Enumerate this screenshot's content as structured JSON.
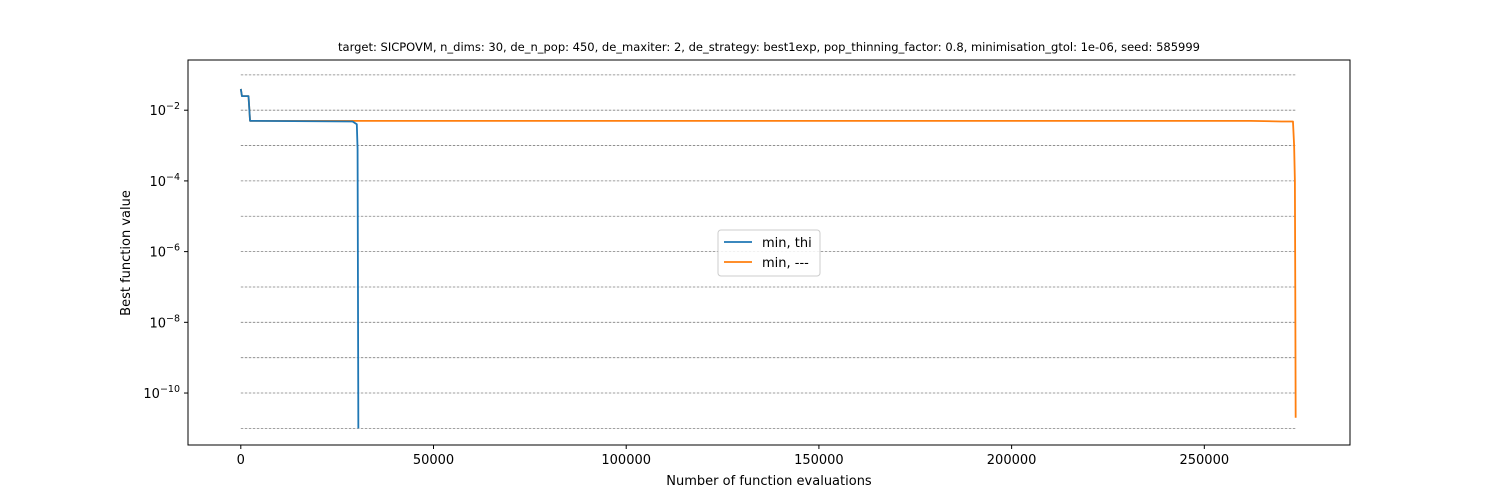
{
  "chart_data": {
    "type": "line",
    "title": "target: SICPOVM, n_dims: 30, de_n_pop: 450, de_maxiter: 2, de_strategy: best1exp, pop_thinning_factor: 0.8, minimisation_gtol: 1e-06, seed: 585999",
    "xlabel": "Number of function evaluations",
    "ylabel": "Best function value",
    "xlim": [
      -13700,
      287800
    ],
    "ylim_log10": [
      -11.47,
      -0.58
    ],
    "yscale": "log",
    "x_ticks": [
      0,
      50000,
      100000,
      150000,
      200000,
      250000
    ],
    "x_tick_labels": [
      "0",
      "50000",
      "100000",
      "150000",
      "200000",
      "250000"
    ],
    "y_ticks_log10": [
      -10,
      -8,
      -6,
      -4,
      -2
    ],
    "y_tick_labels": [
      {
        "base": "10",
        "exp": "−10"
      },
      {
        "base": "10",
        "exp": "−8"
      },
      {
        "base": "10",
        "exp": "−6"
      },
      {
        "base": "10",
        "exp": "−4"
      },
      {
        "base": "10",
        "exp": "−2"
      }
    ],
    "gridlines_log10": [
      -11,
      -10,
      -9,
      -8,
      -7,
      -6,
      -5,
      -4,
      -3,
      -2,
      -1
    ],
    "grid": "horizontal dashed",
    "legend_position": "center",
    "series": [
      {
        "name": "min, thi",
        "color": "#1f77b4",
        "points": [
          [
            0,
            0.04
          ],
          [
            300,
            0.025
          ],
          [
            2000,
            0.025
          ],
          [
            2400,
            0.005
          ],
          [
            29000,
            0.0048
          ],
          [
            30100,
            0.004
          ],
          [
            30300,
            0.0008
          ],
          [
            30400,
            1e-07
          ],
          [
            30500,
            1e-11
          ]
        ]
      },
      {
        "name": "min, ---",
        "color": "#ff7f0e",
        "points": [
          [
            0,
            0.04
          ],
          [
            300,
            0.025
          ],
          [
            2000,
            0.025
          ],
          [
            2400,
            0.005
          ],
          [
            100000,
            0.005
          ],
          [
            262000,
            0.005
          ],
          [
            270000,
            0.0048
          ],
          [
            273000,
            0.0048
          ],
          [
            273300,
            0.001
          ],
          [
            273500,
            0.0001
          ],
          [
            273600,
            1e-07
          ],
          [
            273700,
            2e-11
          ]
        ]
      }
    ]
  }
}
